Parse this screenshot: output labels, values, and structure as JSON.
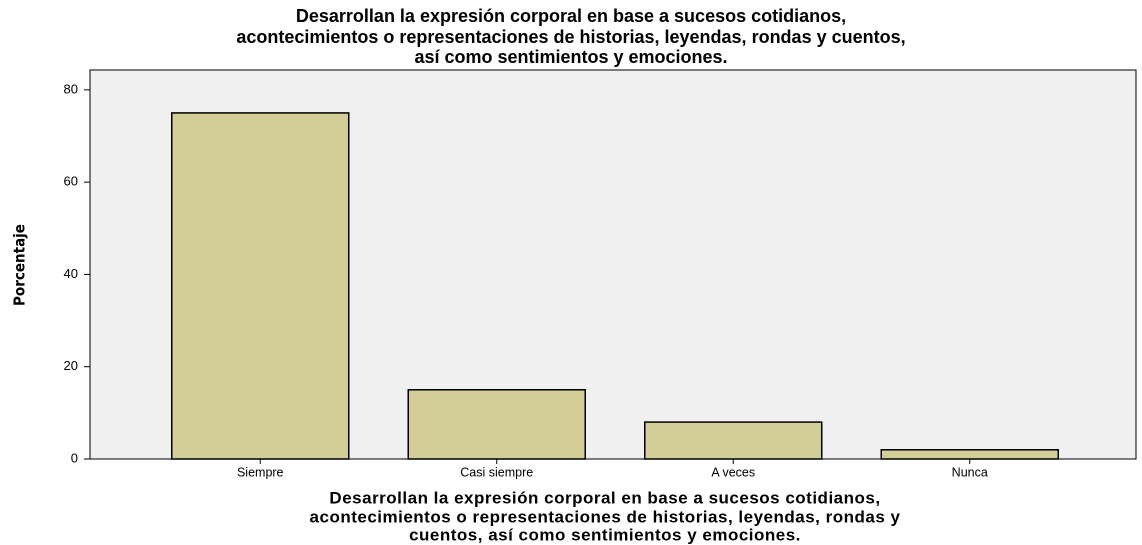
{
  "chart_data": {
    "type": "bar",
    "title": [
      "Desarrollan la expresión corporal en base a sucesos cotidianos,",
      "acontecimientos o representaciones de historias, leyendas, rondas y cuentos,",
      "así como sentimientos y emociones."
    ],
    "x_label": [
      "Desarrollan la expresión corporal en base a sucesos cotidianos,",
      "acontecimientos o representaciones de historias, leyendas, rondas y",
      "cuentos, así como sentimientos y emociones."
    ],
    "y_label": "Porcentaje",
    "categories": [
      "Siempre",
      "Casi siempre",
      "A veces",
      "Nunca"
    ],
    "values": [
      75,
      15,
      8,
      2
    ],
    "color": "#d3cd97",
    "ylim": [
      0,
      84.3
    ],
    "yticks": [
      0,
      20,
      40,
      60,
      80
    ],
    "grid": false
  }
}
